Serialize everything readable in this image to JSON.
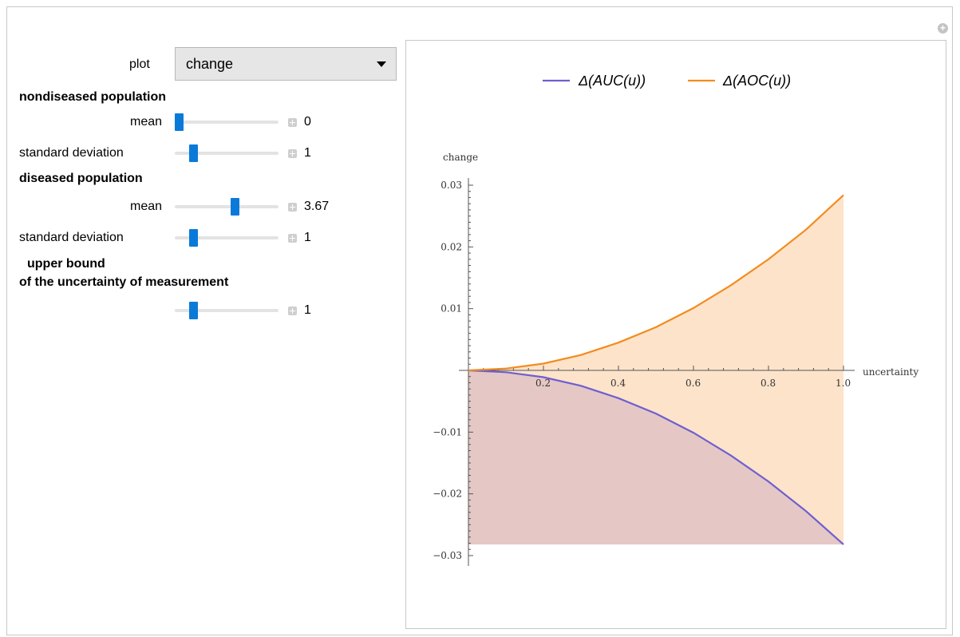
{
  "controls": {
    "plot": {
      "label": "plot",
      "selected": "change"
    },
    "nondiseased": {
      "heading": "nondiseased population",
      "mean": {
        "label": "mean",
        "value": "0",
        "fraction": 0.04
      },
      "sd": {
        "label": "standard deviation",
        "value": "1",
        "fraction": 0.18
      }
    },
    "diseased": {
      "heading": "diseased population",
      "mean": {
        "label": "mean",
        "value": "3.67",
        "fraction": 0.58
      },
      "sd": {
        "label": "standard deviation",
        "value": "1",
        "fraction": 0.18
      }
    },
    "uncertainty": {
      "heading_line1": "upper bound",
      "heading_line2": "of the uncertainty of measurement",
      "value": "1",
      "fraction": 0.18
    }
  },
  "chart_data": {
    "type": "area",
    "xlabel": "uncertainty",
    "ylabel": "change",
    "xlim": [
      0,
      1.0
    ],
    "ylim": [
      -0.03,
      0.03
    ],
    "x_ticks": [
      "0.2",
      "0.4",
      "0.6",
      "0.8",
      "1.0"
    ],
    "y_ticks": [
      "0.03",
      "0.02",
      "0.01",
      "−0.01",
      "−0.02",
      "−0.03"
    ],
    "legend_position": "top",
    "series": [
      {
        "name": "Δ(AUC(u))",
        "color": "#6e5fd0",
        "fill": "#e5c8c5",
        "x": [
          0,
          0.1,
          0.2,
          0.3,
          0.4,
          0.5,
          0.6,
          0.7,
          0.8,
          0.9,
          1.0
        ],
        "y": [
          0,
          -0.0003,
          -0.0011,
          -0.0025,
          -0.0045,
          -0.007,
          -0.0101,
          -0.0138,
          -0.018,
          -0.0228,
          -0.0282
        ]
      },
      {
        "name": "Δ(AOC(u))",
        "color": "#f28c1f",
        "fill": "#fde3ca",
        "x": [
          0,
          0.1,
          0.2,
          0.3,
          0.4,
          0.5,
          0.6,
          0.7,
          0.8,
          0.9,
          1.0
        ],
        "y": [
          0,
          0.0003,
          0.0011,
          0.0025,
          0.0045,
          0.007,
          0.0101,
          0.0138,
          0.018,
          0.0228,
          0.0284
        ]
      }
    ]
  }
}
